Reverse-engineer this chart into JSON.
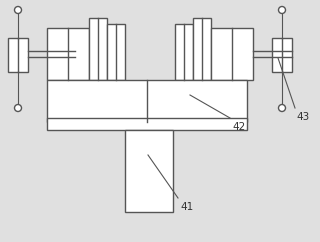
{
  "bg_color": "#e0e0e0",
  "line_color": "#555555",
  "fill_color": "#ffffff",
  "label_color": "#333333",
  "lw": 1.0
}
